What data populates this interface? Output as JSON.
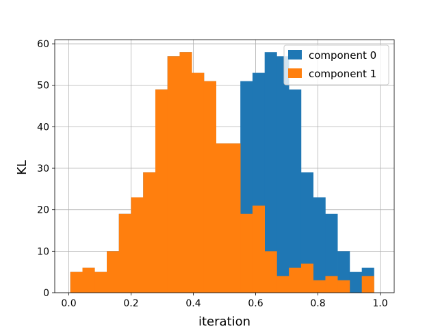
{
  "chart_data": {
    "type": "bar",
    "title": "",
    "xlabel": "iteration",
    "ylabel": "KL",
    "xlim": [
      -0.045,
      1.045
    ],
    "ylim": [
      0,
      61
    ],
    "xticks": [
      0.0,
      0.2,
      0.4,
      0.6,
      0.8,
      1.0
    ],
    "xtick_labels": [
      "0.0",
      "0.2",
      "0.4",
      "0.6",
      "0.8",
      "1.0"
    ],
    "yticks": [
      0,
      10,
      20,
      30,
      40,
      50,
      60
    ],
    "ytick_labels": [
      "0",
      "10",
      "20",
      "30",
      "40",
      "50",
      "60"
    ],
    "grid": true,
    "legend_position": "top-right",
    "bin_edges": [
      0.005,
      0.044,
      0.083,
      0.122,
      0.161,
      0.2,
      0.239,
      0.278,
      0.317,
      0.356,
      0.395,
      0.434,
      0.473,
      0.512,
      0.551,
      0.59,
      0.629,
      0.668,
      0.707,
      0.746,
      0.785,
      0.824,
      0.863,
      0.902,
      0.941,
      0.98
    ],
    "series": [
      {
        "name": "component 0",
        "color": "#1f77b4",
        "bin_edges": [
          0.005,
          0.044,
          0.083,
          0.122,
          0.161,
          0.2,
          0.239,
          0.278,
          0.317,
          0.356,
          0.395,
          0.434,
          0.473,
          0.512,
          0.551,
          0.59,
          0.629,
          0.668,
          0.707,
          0.746,
          0.785,
          0.824,
          0.863,
          0.902,
          0.941,
          0.98
        ],
        "values": [
          5,
          6,
          5,
          10,
          19,
          23,
          29,
          49,
          57,
          58,
          53,
          51,
          36,
          36,
          51,
          53,
          58,
          57,
          49,
          29,
          23,
          19,
          10,
          5,
          6
        ]
      },
      {
        "name": "component 1",
        "color": "#ff7f0e",
        "bin_edges": [
          0.005,
          0.044,
          0.083,
          0.122,
          0.161,
          0.2,
          0.239,
          0.278,
          0.317,
          0.356,
          0.395,
          0.434,
          0.473,
          0.512,
          0.551,
          0.59,
          0.629,
          0.668,
          0.707,
          0.746,
          0.785,
          0.824,
          0.863,
          0.902,
          0.941,
          0.98
        ],
        "values": [
          5,
          6,
          5,
          10,
          19,
          23,
          29,
          49,
          57,
          58,
          53,
          51,
          36,
          36,
          19,
          21,
          10,
          4,
          6,
          7,
          3,
          4,
          3,
          0,
          4
        ]
      }
    ]
  }
}
